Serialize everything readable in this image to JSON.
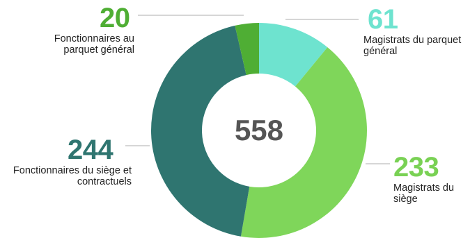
{
  "chart_data": {
    "type": "pie",
    "subtype": "donut",
    "center_total": "558",
    "slices": [
      {
        "label": "Magistrats du parquet général",
        "value": 61,
        "display": "61",
        "color": "#6ee3cf",
        "value_color": "#6ee3cf"
      },
      {
        "label": "Magistrats du siège",
        "value": 233,
        "display": "233",
        "color": "#7fd65a",
        "value_color": "#79d154"
      },
      {
        "label": "Fonctionnaires du siège et contractuels",
        "value": 244,
        "display": "244",
        "color": "#2f7570",
        "value_color": "#2f7570"
      },
      {
        "label": "Fonctionnaires au parquet général",
        "value": 20,
        "display": "20",
        "color": "#4fae34",
        "value_color": "#4fae34"
      }
    ],
    "colors": {
      "leader_line": "#c8c8c8",
      "center_text": "#555555",
      "label_text": "#222222"
    }
  }
}
